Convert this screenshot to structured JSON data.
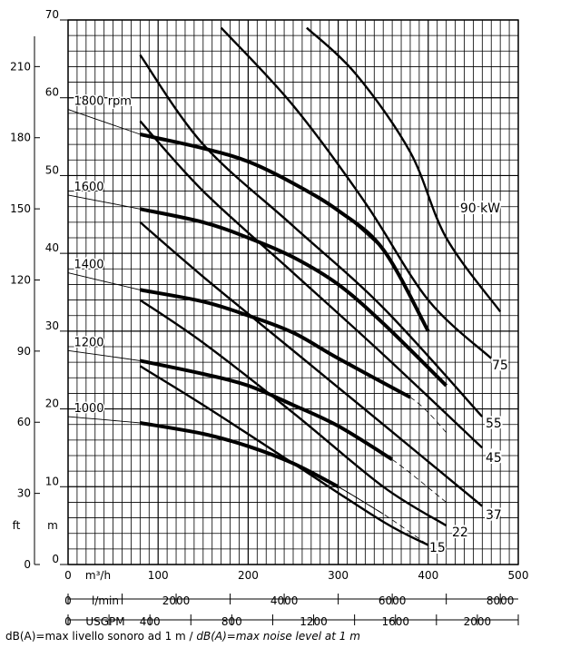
{
  "chart_data": {
    "type": "line",
    "grid": true,
    "axes": {
      "x_primary": {
        "unit_label": "m³/h",
        "range": [
          0,
          500
        ],
        "ticks": [
          "0",
          "100",
          "200",
          "300",
          "400",
          "500"
        ]
      },
      "x_lmin": {
        "unit_label": "l/min",
        "range": [
          0,
          8333
        ],
        "ticks": [
          "0",
          "2000",
          "4000",
          "6000",
          "8000"
        ]
      },
      "x_usgpm": {
        "unit_label": "USGPM",
        "range": [
          0,
          2200
        ],
        "ticks": [
          "0",
          "400",
          "800",
          "1200",
          "1600",
          "2000"
        ]
      },
      "y_m": {
        "unit_label": "m",
        "range": [
          0,
          70
        ],
        "ticks": [
          "0",
          "10",
          "20",
          "30",
          "40",
          "50",
          "60",
          "70"
        ]
      },
      "y_ft": {
        "unit_label": "ft",
        "range": [
          0,
          230
        ],
        "ticks": [
          "0",
          "30",
          "60",
          "90",
          "120",
          "150",
          "180",
          "210"
        ]
      }
    },
    "speed_curves": [
      {
        "name": "1800 rpm",
        "x": [
          0,
          80,
          100,
          150,
          200,
          250,
          300,
          350,
          400
        ],
        "y": [
          58.5,
          55.3,
          54.6,
          53.5,
          51.8,
          49,
          45.5,
          40.5,
          30
        ]
      },
      {
        "name": "1600",
        "x": [
          0,
          80,
          100,
          150,
          200,
          250,
          300,
          350,
          420
        ],
        "y": [
          47.5,
          45.7,
          45.2,
          44,
          42,
          39.5,
          36,
          31,
          23
        ]
      },
      {
        "name": "1400",
        "x": [
          0,
          80,
          100,
          150,
          200,
          250,
          300,
          380,
          420
        ],
        "y": [
          37.5,
          35.3,
          34.8,
          33.8,
          32,
          29.8,
          26.5,
          21.5,
          17
        ]
      },
      {
        "name": "1200",
        "x": [
          0,
          80,
          100,
          150,
          200,
          250,
          300,
          360,
          420
        ],
        "y": [
          27.5,
          26.2,
          25.7,
          24.5,
          23,
          20.5,
          17.8,
          13.5,
          8
        ]
      },
      {
        "name": "1000",
        "x": [
          0,
          80,
          100,
          150,
          200,
          250,
          300,
          350,
          400
        ],
        "y": [
          19,
          18.2,
          17.8,
          16.8,
          15.2,
          13,
          10,
          6.5,
          2.5
        ]
      }
    ],
    "operating_segments": [
      {
        "x": [
          80,
          150,
          200,
          250,
          300,
          350,
          400
        ],
        "y": [
          55.3,
          53.5,
          51.8,
          49,
          45.5,
          40.5,
          30
        ]
      },
      {
        "x": [
          80,
          150,
          200,
          250,
          300,
          350,
          420
        ],
        "y": [
          45.7,
          44,
          42,
          39.5,
          36,
          31,
          23
        ]
      },
      {
        "x": [
          80,
          150,
          200,
          250,
          300,
          380
        ],
        "y": [
          35.3,
          33.8,
          32,
          29.8,
          26.5,
          21.5
        ]
      },
      {
        "x": [
          80,
          150,
          200,
          250,
          300,
          360
        ],
        "y": [
          26.2,
          24.5,
          23,
          20.5,
          17.8,
          13.5
        ]
      },
      {
        "x": [
          80,
          150,
          200,
          250,
          300
        ],
        "y": [
          18.2,
          16.8,
          15.2,
          13,
          10
        ]
      }
    ],
    "power_curves": [
      {
        "name": "90 kW",
        "x": [
          265,
          320,
          380,
          420,
          480
        ],
        "y": [
          69,
          63,
          53,
          42,
          32.5
        ]
      },
      {
        "name": "75",
        "x": [
          170,
          250,
          330,
          400,
          470
        ],
        "y": [
          69,
          59,
          46.5,
          34,
          26.5
        ]
      },
      {
        "name": "55",
        "x": [
          80,
          150,
          250,
          350,
          460
        ],
        "y": [
          65.5,
          54,
          43.5,
          33,
          19
        ]
      },
      {
        "name": "45",
        "x": [
          80,
          150,
          250,
          350,
          460
        ],
        "y": [
          57,
          48,
          37.5,
          27,
          15
        ]
      },
      {
        "name": "37",
        "x": [
          80,
          150,
          250,
          350,
          460
        ],
        "y": [
          44,
          37,
          27.5,
          18,
          7.5
        ]
      },
      {
        "name": "22",
        "x": [
          80,
          150,
          250,
          350,
          420
        ],
        "y": [
          34,
          28.5,
          19.5,
          10,
          5
        ]
      },
      {
        "name": "15",
        "x": [
          80,
          150,
          250,
          350,
          400
        ],
        "y": [
          25.5,
          20.5,
          13,
          5.5,
          2.5
        ]
      }
    ],
    "footnote_regular": "dB(A)=max livello sonoro ad 1 m  /  ",
    "footnote_italic": "dB(A)=max noise level at 1 m",
    "colors": {
      "curves": "#000000",
      "grid": "#000000",
      "background": "#ffffff"
    }
  }
}
